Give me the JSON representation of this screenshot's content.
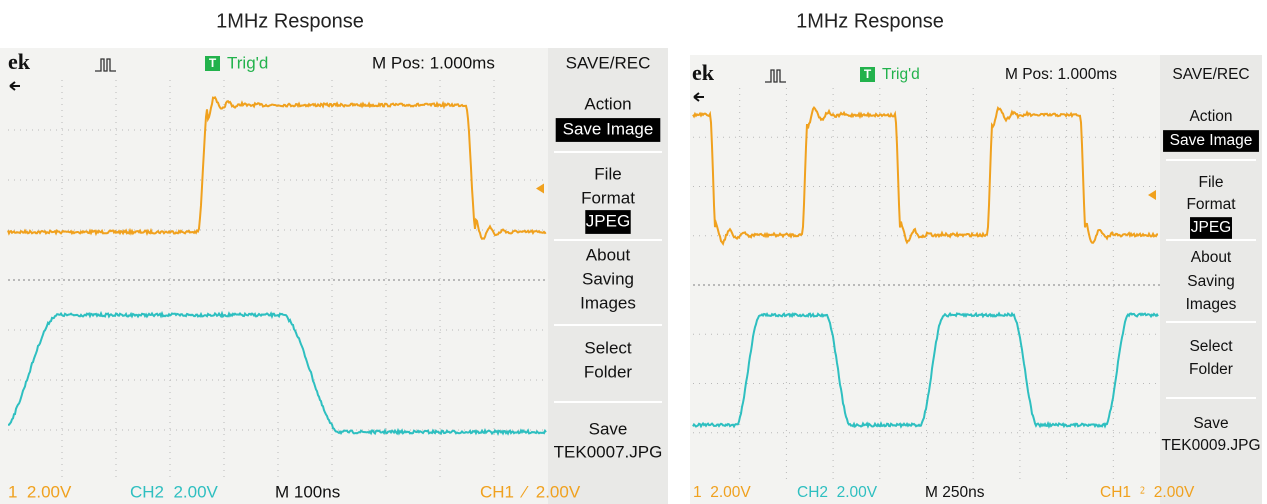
{
  "panels": [
    {
      "title": "1MHz Response",
      "header": {
        "logo": "ek",
        "trigger_icon": "T",
        "trigger_status": "Trig'd",
        "m_pos": "M Pos: 1.000ms",
        "menu_title": "SAVE/REC"
      },
      "menu": [
        {
          "label": [
            "Action"
          ],
          "value": "Save Image",
          "selected": true
        },
        {
          "label": [
            "File",
            "Format"
          ],
          "value": "JPEG",
          "selected": true
        },
        {
          "label": [
            "About",
            "Saving",
            "Images"
          ]
        },
        {
          "label": [
            "Select",
            "Folder"
          ]
        },
        {
          "label": [
            "Save"
          ],
          "value": "TEK0007.JPG",
          "selected": false
        }
      ],
      "footer": {
        "ch1": "1  2.00V",
        "ch2": "CH2  2.00V",
        "timebase": "M 100ns",
        "trigger": "CH1  ⁄  2.00V"
      }
    },
    {
      "title": "1MHz Response",
      "header": {
        "logo": "ek",
        "trigger_icon": "T",
        "trigger_status": "Trig'd",
        "m_pos": "M Pos: 1.000ms",
        "menu_title": "SAVE/REC"
      },
      "menu": [
        {
          "label": [
            "Action"
          ],
          "value": "Save Image",
          "selected": true
        },
        {
          "label": [
            "File",
            "Format"
          ],
          "value": "JPEG",
          "selected": true
        },
        {
          "label": [
            "About",
            "Saving",
            "Images"
          ]
        },
        {
          "label": [
            "Select",
            "Folder"
          ]
        },
        {
          "label": [
            "Save"
          ],
          "value": "TEK0009.JPG",
          "selected": false
        }
      ],
      "footer": {
        "ch1": "1  2.00V",
        "ch2": "CH2  2.00V",
        "timebase": "M 250ns",
        "trigger": "CH1  ⁲  2.00V"
      }
    }
  ]
}
